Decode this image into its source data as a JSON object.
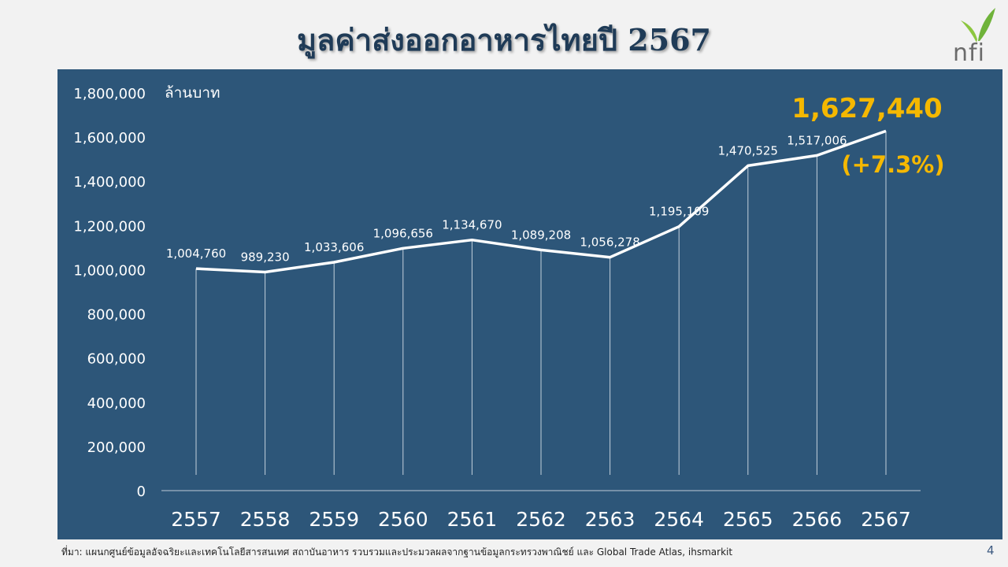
{
  "header": {
    "title": "มูลค่าส่งออกอาหารไทยปี 2567"
  },
  "logo": {
    "brand_text": "nfi",
    "icon": "leaf-sprout-icon",
    "colors": {
      "leaf": "#8cc63f",
      "text": "#6b6b6b"
    }
  },
  "footer": {
    "source": "ที่มา: แผนกศูนย์ข้อมูลอัจฉริยะและเทคโนโลยีสารสนเทศ สถาบันอาหาร รวบรวมและประมวลผลจากฐานข้อมูลกระทรวงพาณิชย์ และ Global Trade Atlas, ihsmarkit",
    "page_number": "4"
  },
  "chart_data": {
    "type": "line",
    "title": "",
    "ylabel": "ล้านบาท",
    "xlabel": "",
    "categories": [
      "2557",
      "2558",
      "2559",
      "2560",
      "2561",
      "2562",
      "2563",
      "2564",
      "2565",
      "2566",
      "2567"
    ],
    "values": [
      1004760,
      989230,
      1033606,
      1096656,
      1134670,
      1089208,
      1056278,
      1195109,
      1470525,
      1517006,
      1627440
    ],
    "data_labels": [
      "1,004,760",
      "989,230",
      "1,033,606",
      "1,096,656",
      "1,134,670",
      "1,089,208",
      "1,056,278",
      "1,195,109",
      "1,470,525",
      "1,517,006",
      "1,627,440"
    ],
    "highlight": {
      "value_label": "1,627,440",
      "change_label": "(+7.3%)"
    },
    "ylim": [
      0,
      1800000
    ],
    "yticks": [
      0,
      200000,
      400000,
      600000,
      800000,
      1000000,
      1200000,
      1400000,
      1600000,
      1800000
    ],
    "ytick_labels": [
      "0",
      "200,000",
      "400,000",
      "600,000",
      "800,000",
      "1,000,000",
      "1,200,000",
      "1,400,000",
      "1,600,000",
      "1,800,000"
    ],
    "grid": false,
    "drop_lines": true,
    "colors": {
      "background": "#2d5679",
      "line": "#ffffff",
      "highlight": "#f5b800",
      "axis_text": "#ffffff"
    }
  }
}
